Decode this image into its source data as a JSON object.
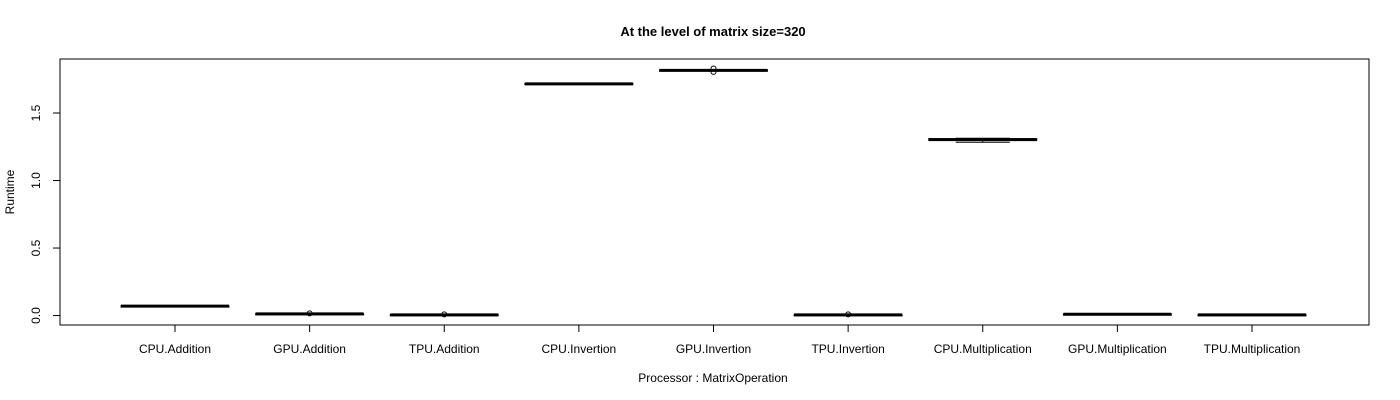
{
  "chart_data": {
    "type": "boxplot",
    "title": "At the level of matrix size=320",
    "xlabel": "Processor : MatrixOperation",
    "ylabel": "Runtime",
    "ylim": [
      -0.07,
      1.9
    ],
    "yticks": [
      0.0,
      0.5,
      1.0,
      1.5
    ],
    "ytick_labels": [
      "0.0",
      "0.5",
      "1.0",
      "1.5"
    ],
    "grid": false,
    "categories": [
      "CPU.Addition",
      "GPU.Addition",
      "TPU.Addition",
      "CPU.Invertion",
      "GPU.Invertion",
      "TPU.Invertion",
      "CPU.Multiplication",
      "GPU.Multiplication",
      "TPU.Multiplication"
    ],
    "boxes": [
      {
        "min": 0.068,
        "q1": 0.069,
        "median": 0.07,
        "q3": 0.071,
        "max": 0.072,
        "outliers": []
      },
      {
        "min": 0.01,
        "q1": 0.011,
        "median": 0.012,
        "q3": 0.013,
        "max": 0.014,
        "outliers": [
          0.016
        ]
      },
      {
        "min": 0.003,
        "q1": 0.004,
        "median": 0.005,
        "q3": 0.006,
        "max": 0.007,
        "outliers": [
          0.009
        ]
      },
      {
        "min": 1.712,
        "q1": 1.714,
        "median": 1.716,
        "q3": 1.718,
        "max": 1.722,
        "outliers": []
      },
      {
        "min": 1.812,
        "q1": 1.814,
        "median": 1.816,
        "q3": 1.818,
        "max": 1.82,
        "outliers": [
          1.805,
          1.83
        ]
      },
      {
        "min": 0.003,
        "q1": 0.004,
        "median": 0.005,
        "q3": 0.006,
        "max": 0.007,
        "outliers": [
          0.009
        ]
      },
      {
        "min": 1.283,
        "q1": 1.298,
        "median": 1.303,
        "q3": 1.31,
        "max": 1.313,
        "outliers": []
      },
      {
        "min": 0.008,
        "q1": 0.009,
        "median": 0.01,
        "q3": 0.011,
        "max": 0.012,
        "outliers": []
      },
      {
        "min": 0.003,
        "q1": 0.004,
        "median": 0.005,
        "q3": 0.006,
        "max": 0.007,
        "outliers": []
      }
    ]
  }
}
